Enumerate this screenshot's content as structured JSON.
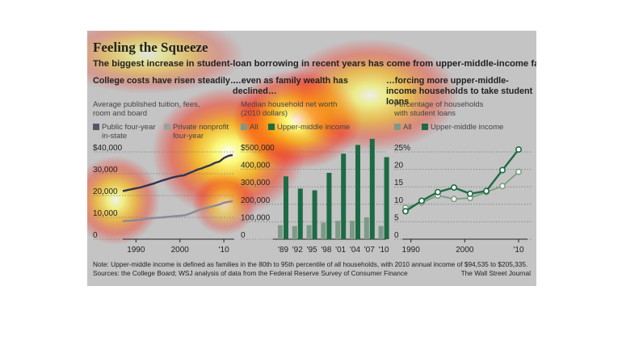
{
  "title": "Feeling the Squeeze",
  "subtitle": "The biggest increase in student-loan borrowing in recent years has come from upper-middle-income families.",
  "note": "Note: Upper-middle income is defined as families in the 80th to 95th percentile of all households, with 2010 annual income of $94,535 to $205,335.",
  "source": "Sources: the College Board; WSJ analysis of data from the Federal Reserve Survey of Consumer Finance",
  "credit": "The Wall Street Journal",
  "colors": {
    "background": "#c4c4c4",
    "public_line": "#33334d",
    "private_line": "#8a8a96",
    "all_bar": "#7d9a86",
    "upper_bar": "#1c6b45",
    "all_line": "#7c9e83",
    "upper_line": "#1c6b45"
  },
  "panels": [
    {
      "heading": "College costs have risen steadily…",
      "chart_label": "Average published tuition, fees, room and board",
      "legend": [
        {
          "label": "Public four-year in-state",
          "color": "#55556a"
        },
        {
          "label": "Private nonprofit four-year",
          "color": "#9aa0a0"
        }
      ]
    },
    {
      "heading": "…even as family wealth has declined…",
      "chart_label": "Median household net worth (2010 dollars)",
      "legend": [
        {
          "label": "All",
          "color": "#7d9a86"
        },
        {
          "label": "Upper-middle income",
          "color": "#1c6b45"
        }
      ]
    },
    {
      "heading": "…forcing more upper-middle-income households to take student loans",
      "chart_label": "Percentage of households with student loans",
      "legend": [
        {
          "label": "All",
          "color": "#7d9a86"
        },
        {
          "label": "Upper-middle income",
          "color": "#1c6b45"
        }
      ]
    }
  ],
  "chart_data": [
    {
      "type": "line",
      "title": "College costs have risen steadily…",
      "ylabel": "Average published tuition, fees, room and board",
      "x": [
        1987,
        1988,
        1989,
        1990,
        1991,
        1992,
        1993,
        1994,
        1995,
        1996,
        1997,
        1998,
        1999,
        2000,
        2001,
        2002,
        2003,
        2004,
        2005,
        2006,
        2007,
        2008,
        2009,
        2010,
        2011,
        2012
      ],
      "series": [
        {
          "name": "Private nonprofit four-year",
          "values": [
            22000,
            22500,
            22900,
            23300,
            23700,
            24300,
            24900,
            25500,
            26200,
            26900,
            27500,
            28100,
            28600,
            29000,
            29300,
            30200,
            31000,
            31900,
            32500,
            33300,
            34000,
            35000,
            35600,
            37200,
            38200,
            38600
          ]
        },
        {
          "name": "Public four-year in-state",
          "values": [
            8300,
            8400,
            8500,
            8700,
            8900,
            9200,
            9500,
            9700,
            9900,
            10000,
            10200,
            10400,
            10600,
            10700,
            10900,
            11500,
            12300,
            13100,
            13800,
            14300,
            14800,
            15400,
            15900,
            16700,
            17100,
            17400
          ]
        }
      ],
      "xticks": [
        "1990",
        "2000",
        "'10"
      ],
      "yticks": [
        "$40,000",
        "30,000",
        "20,000",
        "10,000",
        "0"
      ],
      "ylim": [
        0,
        42000
      ],
      "grid": true,
      "legend": "top"
    },
    {
      "type": "bar",
      "title": "…even as family wealth has declined…",
      "ylabel": "Median household net worth (2010 dollars)",
      "categories": [
        "'89",
        "'92",
        "'95",
        "'98",
        "'01",
        "'04",
        "'07",
        "'10"
      ],
      "series": [
        {
          "name": "All",
          "values": [
            80000,
            75000,
            80000,
            95000,
            105000,
            105000,
            125000,
            75000
          ]
        },
        {
          "name": "Upper-middle income",
          "values": [
            360000,
            290000,
            280000,
            380000,
            490000,
            540000,
            575000,
            470000
          ]
        }
      ],
      "yticks": [
        "$500,000",
        "400,000",
        "300,000",
        "200,000",
        "100,000",
        "0"
      ],
      "ylim": [
        0,
        600000
      ],
      "grid": true,
      "legend": "top"
    },
    {
      "type": "line",
      "title": "…forcing more upper-middle-income households to take student loans",
      "ylabel": "Percentage of households with student loans",
      "x": [
        1989,
        1992,
        1995,
        1998,
        2001,
        2004,
        2007,
        2010
      ],
      "series": [
        {
          "name": "All",
          "values": [
            9,
            10.5,
            12.5,
            11.5,
            11.8,
            13.5,
            15.2,
            19.3
          ]
        },
        {
          "name": "Upper-middle income",
          "values": [
            8,
            11,
            13.5,
            14.8,
            13,
            13.8,
            19.8,
            25.7
          ]
        }
      ],
      "xticks": [
        "1990",
        "2000",
        "'10"
      ],
      "yticks": [
        "25%",
        "20",
        "15",
        "10",
        "5",
        "0"
      ],
      "ylim": [
        0,
        27
      ],
      "grid": true,
      "legend": "top"
    }
  ]
}
